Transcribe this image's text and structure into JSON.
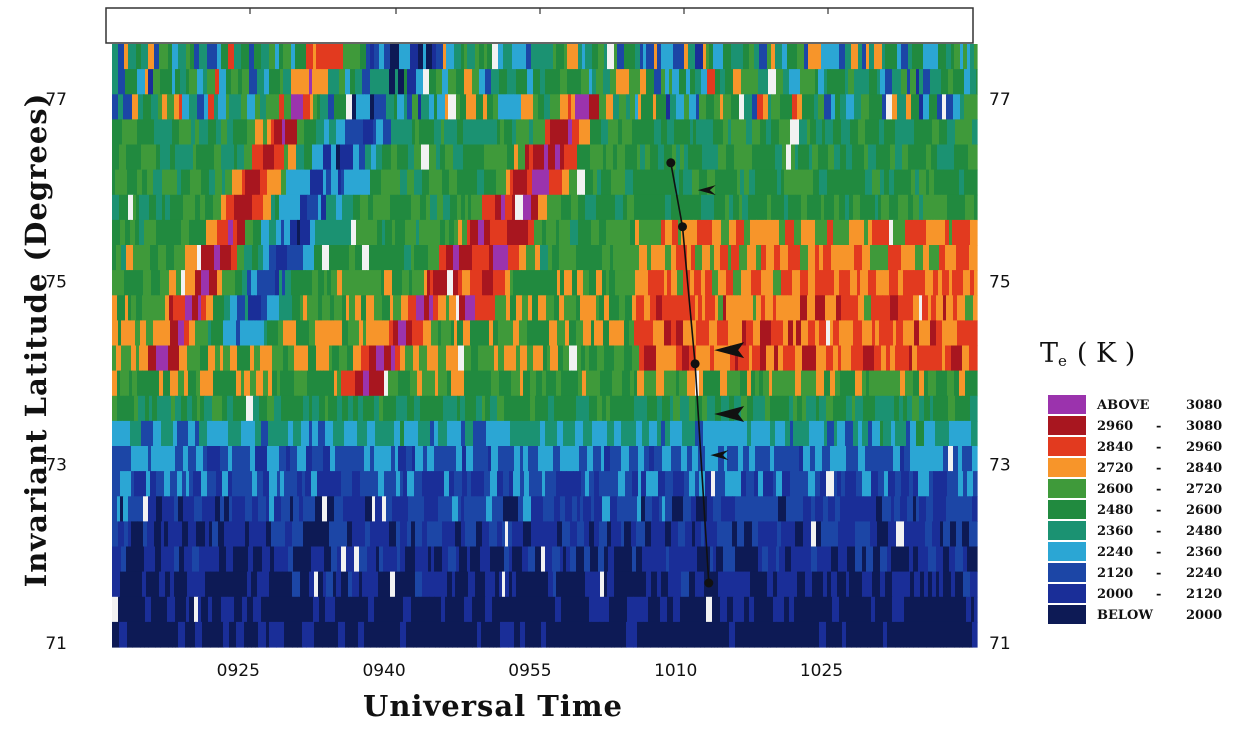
{
  "chart_data": {
    "type": "heatmap",
    "title": "",
    "xlabel": "Universal Time",
    "ylabel": "Invariant Latitude (Degrees)",
    "x_ticks": [
      "0925",
      "0940",
      "0955",
      "1010",
      "1025"
    ],
    "x_tick_minutes": [
      565,
      580,
      595,
      610,
      625
    ],
    "xlim_minutes": [
      552,
      641
    ],
    "y_ticks": [
      71,
      73,
      75,
      77
    ],
    "ylim": [
      71,
      77.6
    ],
    "colorbar": {
      "title": "T",
      "title_subscript": "e",
      "unit": "( K )",
      "bins": [
        {
          "label_left": "ABOVE",
          "label_right": "3080",
          "color": "#9b33ad",
          "lo": 3080,
          "hi": 3400
        },
        {
          "label_left": "2960",
          "label_right": "3080",
          "color": "#a8161f",
          "lo": 2960,
          "hi": 3080
        },
        {
          "label_left": "2840",
          "label_right": "2960",
          "color": "#e23a1f",
          "lo": 2840,
          "hi": 2960
        },
        {
          "label_left": "2720",
          "label_right": "2840",
          "color": "#f7952a",
          "lo": 2720,
          "hi": 2840
        },
        {
          "label_left": "2600",
          "label_right": "2720",
          "color": "#3f9a3a",
          "lo": 2600,
          "hi": 2720
        },
        {
          "label_left": "2480",
          "label_right": "2600",
          "color": "#218a3f",
          "lo": 2480,
          "hi": 2600
        },
        {
          "label_left": "2360",
          "label_right": "2480",
          "color": "#1b9272",
          "lo": 2360,
          "hi": 2480
        },
        {
          "label_left": "2240",
          "label_right": "2360",
          "color": "#2ba6d4",
          "lo": 2240,
          "hi": 2360
        },
        {
          "label_left": "2120",
          "label_right": "2240",
          "color": "#1c46a6",
          "lo": 2120,
          "hi": 2240
        },
        {
          "label_left": "2000",
          "label_right": "2120",
          "color": "#1a2e98",
          "lo": 2000,
          "hi": 2120
        },
        {
          "label_left": "BELOW",
          "label_right": "2000",
          "color": "#0d1a55",
          "lo": 1700,
          "hi": 2000
        }
      ]
    },
    "boundary_points": [
      {
        "t": 609.5,
        "lat": 76.3
      },
      {
        "t": 610.7,
        "lat": 75.6
      },
      {
        "t": 612.0,
        "lat": 74.1
      },
      {
        "t": 613.4,
        "lat": 71.7
      }
    ],
    "arrows": [
      {
        "t": 613.2,
        "lat": 76.0,
        "size": "small"
      },
      {
        "t": 615.5,
        "lat": 74.25,
        "size": "large"
      },
      {
        "t": 615.5,
        "lat": 73.55,
        "size": "large"
      },
      {
        "t": 614.5,
        "lat": 73.1,
        "size": "small"
      }
    ],
    "te_profile": [
      {
        "lat": 71.3,
        "te": 1900
      },
      {
        "lat": 71.7,
        "te": 2000
      },
      {
        "lat": 72.2,
        "te": 2060
      },
      {
        "lat": 72.7,
        "te": 2150
      },
      {
        "lat": 73.1,
        "te": 2230
      },
      {
        "lat": 73.45,
        "te": 2400
      },
      {
        "lat": 73.75,
        "te": 2600
      },
      {
        "lat": 74.1,
        "te": 2690
      },
      {
        "lat": 74.5,
        "te": 2670
      },
      {
        "lat": 75.0,
        "te": 2620
      },
      {
        "lat": 75.5,
        "te": 2580
      },
      {
        "lat": 76.0,
        "te": 2560
      },
      {
        "lat": 76.5,
        "te": 2540
      },
      {
        "lat": 77.0,
        "te": 2520
      },
      {
        "lat": 77.6,
        "te": 2470
      }
    ],
    "hotspots": [
      {
        "t0": 558,
        "lat0": 74.3,
        "t1": 573,
        "lat1": 77.3,
        "peak": 3120
      },
      {
        "t0": 578,
        "lat0": 73.9,
        "t1": 598,
        "lat1": 76.6,
        "peak": 3130
      },
      {
        "t0": 589,
        "lat0": 74.8,
        "t1": 600,
        "lat1": 76.8,
        "peak": 3140
      }
    ],
    "cool_trough": {
      "t0": 566,
      "lat0": 74.6,
      "t1": 582,
      "lat1": 77.5,
      "depth": 480
    },
    "warm_region": {
      "t0": 606,
      "t1": 641,
      "lat0": 73.9,
      "lat1": 75.8,
      "boost": 190
    }
  }
}
